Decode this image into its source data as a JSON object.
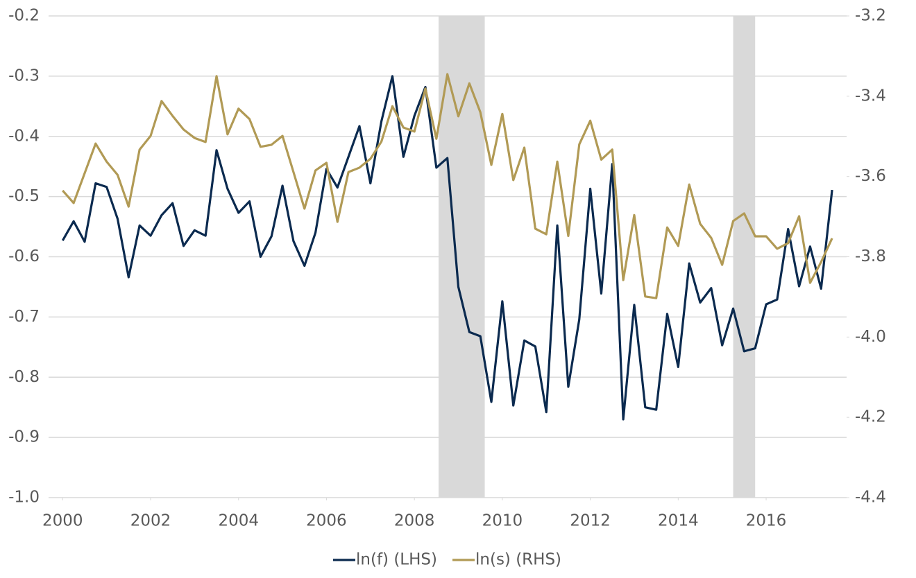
{
  "chart_data": {
    "type": "line",
    "x": [
      2000,
      2000.25,
      2000.5,
      2000.75,
      2001,
      2001.25,
      2001.5,
      2001.75,
      2002,
      2002.25,
      2002.5,
      2002.75,
      2003,
      2003.25,
      2003.5,
      2003.75,
      2004,
      2004.25,
      2004.5,
      2004.75,
      2005,
      2005.25,
      2005.5,
      2005.75,
      2006,
      2006.25,
      2006.5,
      2006.75,
      2007,
      2007.25,
      2007.5,
      2007.75,
      2008,
      2008.25,
      2008.5,
      2008.75,
      2009,
      2009.25,
      2009.5,
      2009.75,
      2010,
      2010.25,
      2010.5,
      2010.75,
      2011,
      2011.25,
      2011.5,
      2011.75,
      2012,
      2012.25,
      2012.5,
      2012.75,
      2013,
      2013.25,
      2013.5,
      2013.75,
      2014,
      2014.25,
      2014.5,
      2014.75,
      2015,
      2015.25,
      2015.5,
      2015.75,
      2016,
      2016.25,
      2016.5,
      2016.75,
      2017,
      2017.25,
      2017.5
    ],
    "series": [
      {
        "name": "ln(f) (LHS)",
        "color": "#0b2a4f",
        "axis": "y",
        "values": [
          -0.573,
          -0.541,
          -0.575,
          -0.478,
          -0.484,
          -0.537,
          -0.634,
          -0.548,
          -0.565,
          -0.531,
          -0.511,
          -0.582,
          -0.556,
          -0.565,
          -0.423,
          -0.487,
          -0.527,
          -0.508,
          -0.6,
          -0.566,
          -0.482,
          -0.574,
          -0.615,
          -0.56,
          -0.454,
          -0.485,
          -0.434,
          -0.383,
          -0.478,
          -0.375,
          -0.3,
          -0.434,
          -0.366,
          -0.318,
          -0.452,
          -0.436,
          -0.65,
          -0.725,
          -0.732,
          -0.841,
          -0.674,
          -0.847,
          -0.739,
          -0.749,
          -0.858,
          -0.548,
          -0.816,
          -0.704,
          -0.487,
          -0.661,
          -0.446,
          -0.87,
          -0.68,
          -0.85,
          -0.854,
          -0.695,
          -0.783,
          -0.611,
          -0.676,
          -0.652,
          -0.747,
          -0.686,
          -0.757,
          -0.752,
          -0.679,
          -0.671,
          -0.554,
          -0.649,
          -0.583,
          -0.653,
          -0.489
        ]
      },
      {
        "name": "ln(s) (RHS)",
        "color": "#b19a55",
        "axis": "y2",
        "values": [
          -3.635,
          -3.666,
          -3.592,
          -3.518,
          -3.563,
          -3.596,
          -3.675,
          -3.533,
          -3.499,
          -3.412,
          -3.449,
          -3.483,
          -3.504,
          -3.514,
          -3.35,
          -3.495,
          -3.431,
          -3.457,
          -3.526,
          -3.521,
          -3.499,
          -3.589,
          -3.68,
          -3.585,
          -3.566,
          -3.713,
          -3.589,
          -3.578,
          -3.556,
          -3.513,
          -3.425,
          -3.478,
          -3.488,
          -3.381,
          -3.506,
          -3.345,
          -3.45,
          -3.368,
          -3.44,
          -3.571,
          -3.444,
          -3.609,
          -3.528,
          -3.73,
          -3.744,
          -3.563,
          -3.748,
          -3.52,
          -3.461,
          -3.558,
          -3.533,
          -3.858,
          -3.696,
          -3.899,
          -3.903,
          -3.727,
          -3.773,
          -3.62,
          -3.718,
          -3.753,
          -3.82,
          -3.711,
          -3.692,
          -3.749,
          -3.749,
          -3.78,
          -3.766,
          -3.699,
          -3.865,
          -3.813,
          -3.754
        ]
      }
    ],
    "shaded_periods": [
      [
        2008.55,
        2009.6
      ],
      [
        2015.25,
        2015.75
      ]
    ],
    "shade_color": "#d9d9d9",
    "xlim": [
      1999.68,
      2017.83
    ],
    "xticks": [
      2000,
      2002,
      2004,
      2006,
      2008,
      2010,
      2012,
      2014,
      2016
    ],
    "ylim": [
      -1,
      -0.2
    ],
    "yticks": [
      {
        "value": -1,
        "label": "-1.0"
      },
      -0.9,
      -0.8,
      -0.7,
      -0.6,
      -0.5,
      -0.4,
      -0.3,
      -0.2
    ],
    "y2lim": [
      -4.4,
      -3.2
    ],
    "y2ticks": [
      -4.4,
      -4.2,
      {
        "value": -4,
        "label": "-4.0"
      },
      -3.8,
      -3.6,
      -3.4,
      -3.2
    ],
    "grid": true,
    "legend": "bottom"
  }
}
